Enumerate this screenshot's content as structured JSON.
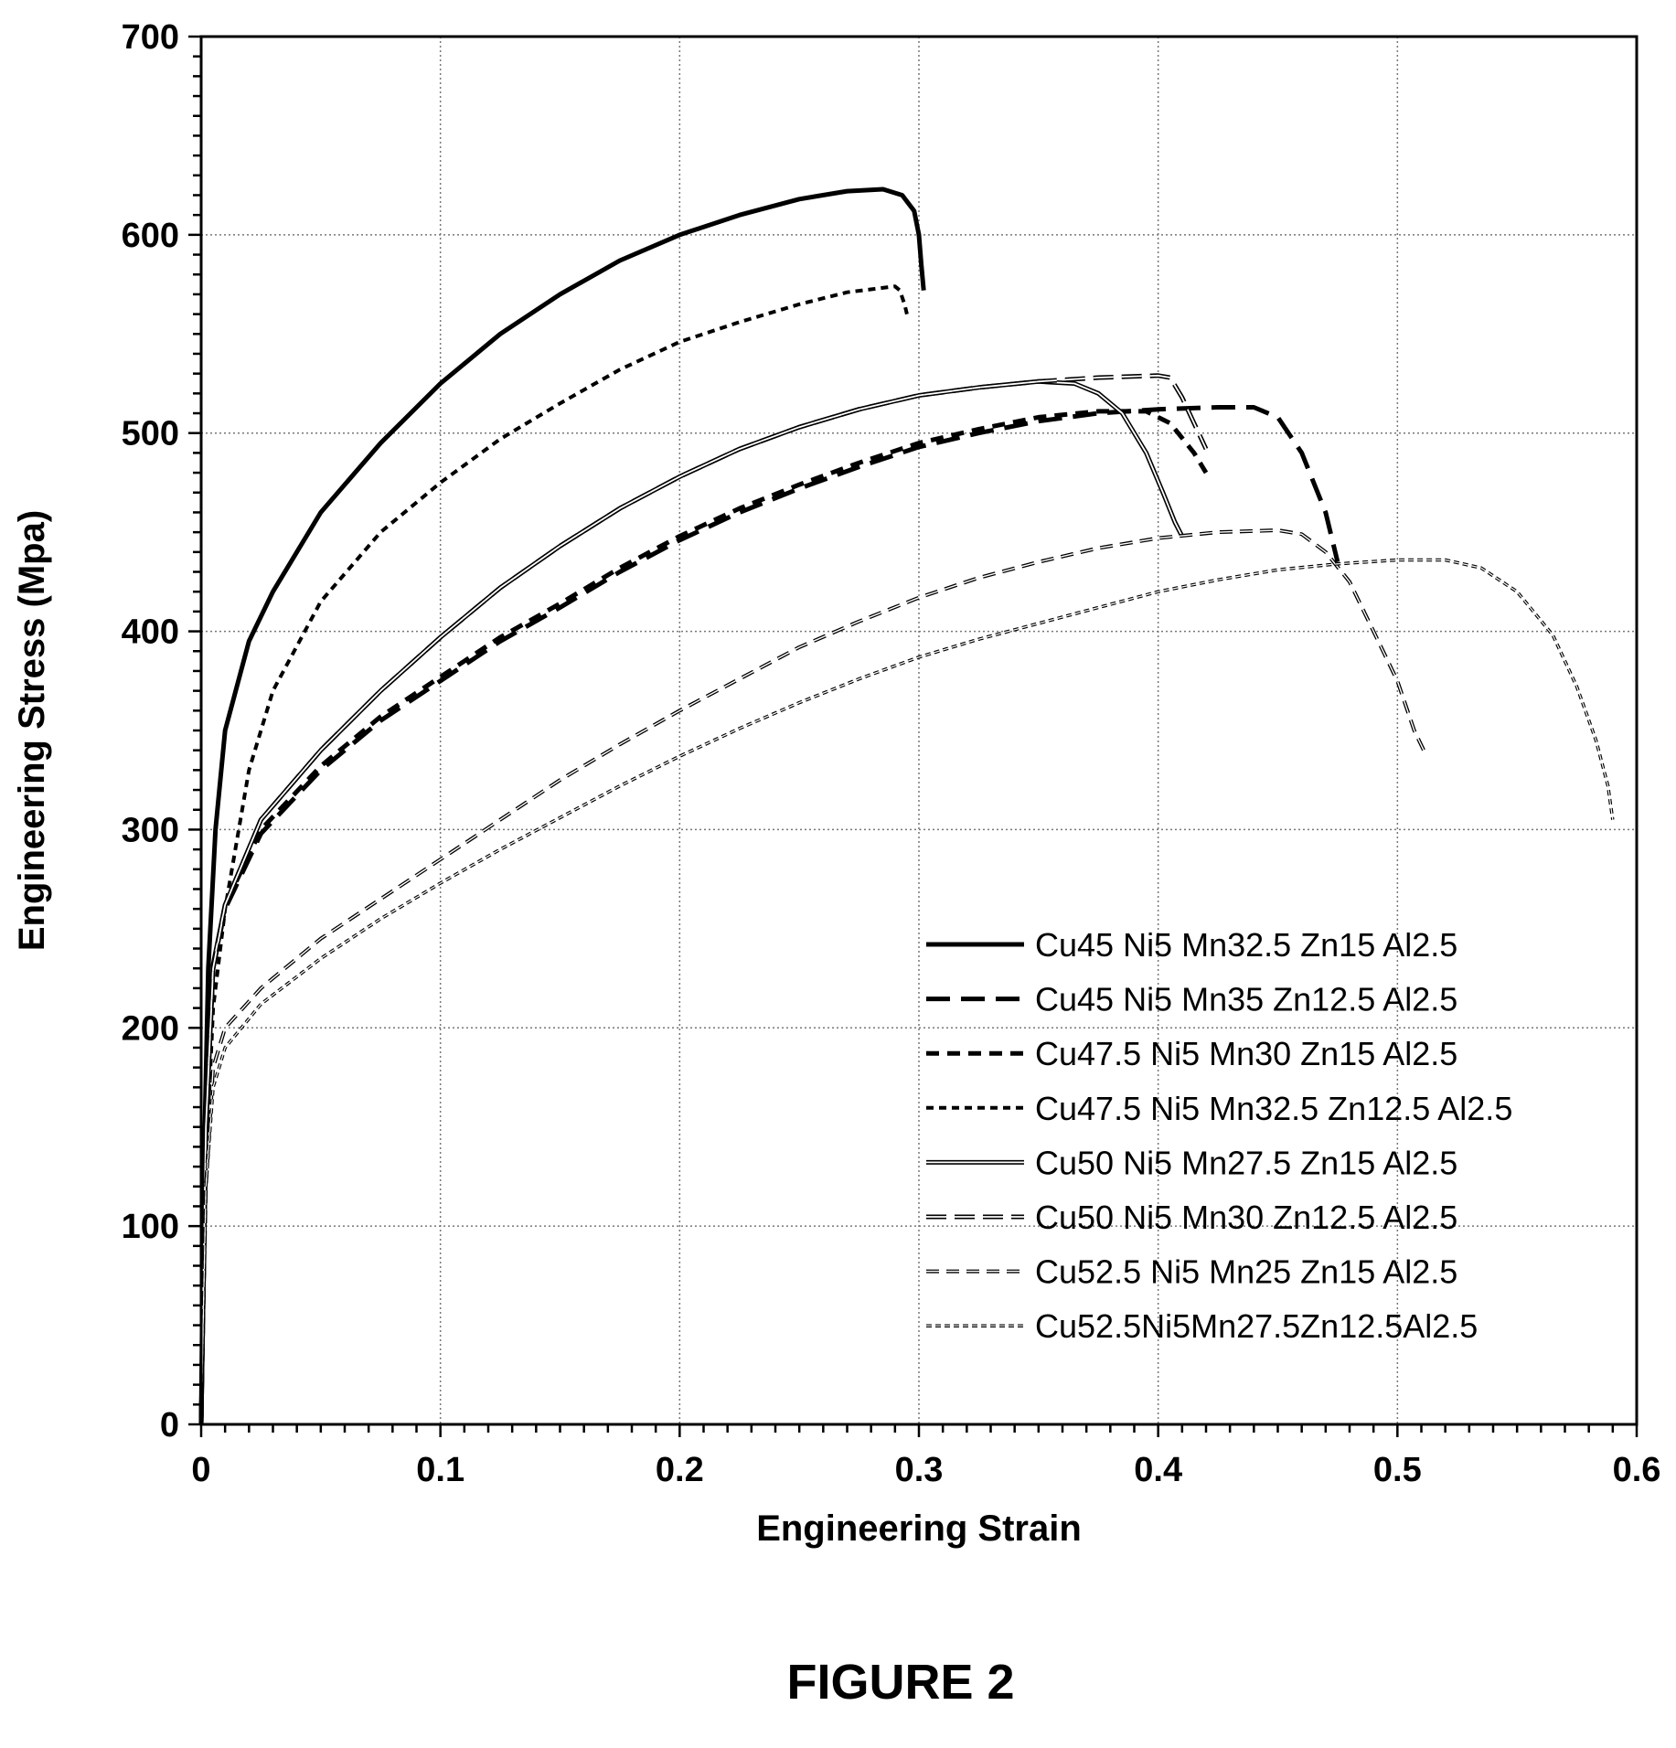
{
  "caption": "FIGURE 2",
  "chart_data": {
    "type": "line",
    "title": "",
    "xlabel": "Engineering Strain",
    "ylabel": "Engineering Stress (Mpa)",
    "xlim": [
      0,
      0.6
    ],
    "ylim": [
      0,
      700
    ],
    "x_ticks": [
      0,
      0.1,
      0.2,
      0.3,
      0.4,
      0.5,
      0.6
    ],
    "x_tick_labels": [
      "0",
      "0.1",
      "0.2",
      "0.3",
      "0.4",
      "0.5",
      "0.6"
    ],
    "y_ticks": [
      0,
      100,
      200,
      300,
      400,
      500,
      600,
      700
    ],
    "y_tick_labels": [
      "0",
      "100",
      "200",
      "300",
      "400",
      "500",
      "600",
      "700"
    ],
    "grid": "dotted",
    "legend_position": "bottom-right",
    "series": [
      {
        "name": "Cu45 Ni5 Mn32.5 Zn15 Al2.5",
        "style": "solid-thick",
        "points": [
          [
            0,
            0
          ],
          [
            0.001,
            120
          ],
          [
            0.003,
            230
          ],
          [
            0.006,
            300
          ],
          [
            0.01,
            350
          ],
          [
            0.02,
            395
          ],
          [
            0.03,
            420
          ],
          [
            0.05,
            460
          ],
          [
            0.075,
            495
          ],
          [
            0.1,
            525
          ],
          [
            0.125,
            550
          ],
          [
            0.15,
            570
          ],
          [
            0.175,
            587
          ],
          [
            0.2,
            600
          ],
          [
            0.225,
            610
          ],
          [
            0.25,
            618
          ],
          [
            0.27,
            622
          ],
          [
            0.285,
            623
          ],
          [
            0.293,
            620
          ],
          [
            0.298,
            612
          ],
          [
            0.3,
            600
          ],
          [
            0.301,
            585
          ],
          [
            0.302,
            572
          ]
        ]
      },
      {
        "name": "Cu45 Ni5 Mn35 Zn12.5 Al2.5",
        "style": "long-dash",
        "points": [
          [
            0,
            0
          ],
          [
            0.002,
            150
          ],
          [
            0.005,
            230
          ],
          [
            0.01,
            260
          ],
          [
            0.025,
            298
          ],
          [
            0.05,
            330
          ],
          [
            0.075,
            355
          ],
          [
            0.1,
            375
          ],
          [
            0.125,
            395
          ],
          [
            0.15,
            412
          ],
          [
            0.175,
            430
          ],
          [
            0.2,
            446
          ],
          [
            0.225,
            460
          ],
          [
            0.25,
            472
          ],
          [
            0.275,
            483
          ],
          [
            0.3,
            493
          ],
          [
            0.325,
            500
          ],
          [
            0.35,
            506
          ],
          [
            0.375,
            510
          ],
          [
            0.4,
            512
          ],
          [
            0.425,
            513
          ],
          [
            0.44,
            513
          ],
          [
            0.45,
            508
          ],
          [
            0.46,
            490
          ],
          [
            0.47,
            460
          ],
          [
            0.475,
            435
          ]
        ]
      },
      {
        "name": "Cu47.5 Ni5 Mn30 Zn15 Al2.5",
        "style": "medium-dash",
        "points": [
          [
            0,
            0
          ],
          [
            0.002,
            150
          ],
          [
            0.005,
            230
          ],
          [
            0.01,
            262
          ],
          [
            0.025,
            300
          ],
          [
            0.05,
            332
          ],
          [
            0.075,
            357
          ],
          [
            0.1,
            377
          ],
          [
            0.125,
            397
          ],
          [
            0.15,
            414
          ],
          [
            0.175,
            432
          ],
          [
            0.2,
            448
          ],
          [
            0.225,
            462
          ],
          [
            0.25,
            474
          ],
          [
            0.275,
            485
          ],
          [
            0.3,
            495
          ],
          [
            0.325,
            502
          ],
          [
            0.35,
            508
          ],
          [
            0.375,
            511
          ],
          [
            0.395,
            511
          ],
          [
            0.405,
            505
          ],
          [
            0.415,
            490
          ],
          [
            0.42,
            480
          ]
        ]
      },
      {
        "name": "Cu47.5 Ni5 Mn32.5 Zn12.5 Al2.5",
        "style": "short-dash",
        "points": [
          [
            0,
            0
          ],
          [
            0.002,
            130
          ],
          [
            0.005,
            210
          ],
          [
            0.01,
            260
          ],
          [
            0.02,
            330
          ],
          [
            0.03,
            370
          ],
          [
            0.05,
            415
          ],
          [
            0.075,
            450
          ],
          [
            0.1,
            475
          ],
          [
            0.125,
            497
          ],
          [
            0.15,
            515
          ],
          [
            0.175,
            532
          ],
          [
            0.2,
            546
          ],
          [
            0.225,
            556
          ],
          [
            0.25,
            565
          ],
          [
            0.27,
            571
          ],
          [
            0.29,
            574
          ],
          [
            0.292,
            572
          ],
          [
            0.294,
            565
          ],
          [
            0.295,
            560
          ]
        ]
      },
      {
        "name": "Cu50 Ni5 Mn27.5 Zn15 Al2.5",
        "style": "double-line",
        "points": [
          [
            0,
            0
          ],
          [
            0.002,
            150
          ],
          [
            0.005,
            232
          ],
          [
            0.01,
            262
          ],
          [
            0.025,
            305
          ],
          [
            0.05,
            340
          ],
          [
            0.075,
            370
          ],
          [
            0.1,
            397
          ],
          [
            0.125,
            422
          ],
          [
            0.15,
            443
          ],
          [
            0.175,
            462
          ],
          [
            0.2,
            478
          ],
          [
            0.225,
            492
          ],
          [
            0.25,
            503
          ],
          [
            0.275,
            512
          ],
          [
            0.3,
            519
          ],
          [
            0.325,
            523
          ],
          [
            0.35,
            526
          ],
          [
            0.365,
            525
          ],
          [
            0.375,
            520
          ],
          [
            0.385,
            510
          ],
          [
            0.395,
            490
          ],
          [
            0.402,
            470
          ],
          [
            0.407,
            455
          ],
          [
            0.41,
            448
          ]
        ]
      },
      {
        "name": "Cu50 Ni5 Mn30 Zn12.5 Al2.5",
        "style": "double-dash",
        "points": [
          [
            0,
            0
          ],
          [
            0.002,
            150
          ],
          [
            0.005,
            230
          ],
          [
            0.01,
            262
          ],
          [
            0.025,
            305
          ],
          [
            0.05,
            340
          ],
          [
            0.075,
            370
          ],
          [
            0.1,
            397
          ],
          [
            0.125,
            422
          ],
          [
            0.15,
            443
          ],
          [
            0.175,
            462
          ],
          [
            0.2,
            478
          ],
          [
            0.225,
            492
          ],
          [
            0.25,
            503
          ],
          [
            0.275,
            512
          ],
          [
            0.3,
            519
          ],
          [
            0.325,
            523
          ],
          [
            0.35,
            526
          ],
          [
            0.375,
            528
          ],
          [
            0.4,
            529
          ],
          [
            0.405,
            528
          ],
          [
            0.41,
            518
          ],
          [
            0.415,
            505
          ],
          [
            0.42,
            492
          ]
        ]
      },
      {
        "name": "Cu52.5 Ni5 Mn25 Zn15 Al2.5",
        "style": "dash-hollow",
        "points": [
          [
            0,
            0
          ],
          [
            0.002,
            120
          ],
          [
            0.005,
            180
          ],
          [
            0.01,
            200
          ],
          [
            0.025,
            220
          ],
          [
            0.05,
            245
          ],
          [
            0.075,
            265
          ],
          [
            0.1,
            285
          ],
          [
            0.125,
            305
          ],
          [
            0.15,
            325
          ],
          [
            0.175,
            343
          ],
          [
            0.2,
            360
          ],
          [
            0.225,
            376
          ],
          [
            0.25,
            392
          ],
          [
            0.275,
            405
          ],
          [
            0.3,
            417
          ],
          [
            0.325,
            427
          ],
          [
            0.35,
            435
          ],
          [
            0.375,
            442
          ],
          [
            0.4,
            447
          ],
          [
            0.425,
            450
          ],
          [
            0.45,
            451
          ],
          [
            0.46,
            449
          ],
          [
            0.47,
            440
          ],
          [
            0.48,
            425
          ],
          [
            0.49,
            400
          ],
          [
            0.5,
            375
          ],
          [
            0.507,
            350
          ],
          [
            0.511,
            340
          ]
        ]
      },
      {
        "name": "Cu52.5Ni5Mn27.5Zn12.5Al2.5",
        "style": "dotted-hollow",
        "points": [
          [
            0,
            0
          ],
          [
            0.002,
            120
          ],
          [
            0.005,
            170
          ],
          [
            0.01,
            190
          ],
          [
            0.025,
            212
          ],
          [
            0.05,
            235
          ],
          [
            0.075,
            255
          ],
          [
            0.1,
            273
          ],
          [
            0.125,
            290
          ],
          [
            0.15,
            306
          ],
          [
            0.175,
            322
          ],
          [
            0.2,
            337
          ],
          [
            0.225,
            351
          ],
          [
            0.25,
            364
          ],
          [
            0.275,
            376
          ],
          [
            0.3,
            387
          ],
          [
            0.325,
            396
          ],
          [
            0.35,
            404
          ],
          [
            0.375,
            412
          ],
          [
            0.4,
            420
          ],
          [
            0.425,
            426
          ],
          [
            0.45,
            431
          ],
          [
            0.475,
            434
          ],
          [
            0.5,
            436
          ],
          [
            0.52,
            436
          ],
          [
            0.535,
            432
          ],
          [
            0.55,
            420
          ],
          [
            0.565,
            398
          ],
          [
            0.575,
            372
          ],
          [
            0.583,
            345
          ],
          [
            0.588,
            322
          ],
          [
            0.59,
            305
          ]
        ]
      }
    ]
  }
}
